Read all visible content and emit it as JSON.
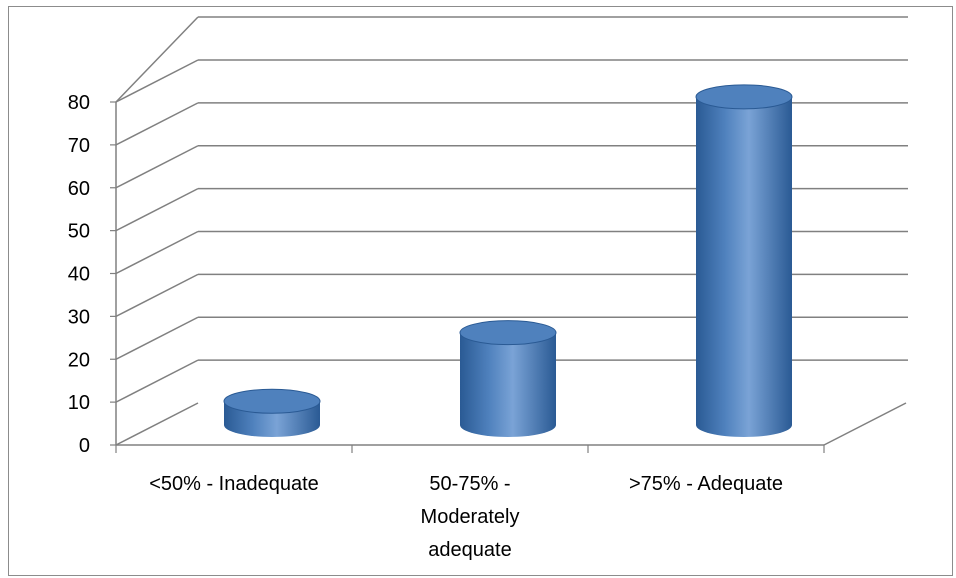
{
  "chart_data": {
    "type": "bar",
    "style": "3d-cylinder",
    "categories": [
      "<50% - Inadequate",
      "50-75% - Moderately adequate",
      ">75% - Adequate"
    ],
    "category_label_lines": [
      [
        "<50% - Inadequate"
      ],
      [
        "50-75% -",
        "Moderately",
        "adequate"
      ],
      [
        ">75% - Adequate"
      ]
    ],
    "values": [
      6,
      22,
      77
    ],
    "ylim": [
      0,
      80
    ],
    "yticks": [
      "0",
      "10",
      "20",
      "30",
      "40",
      "50",
      "60",
      "70",
      "80"
    ],
    "grid": true,
    "legend": "none",
    "title": "",
    "xlabel": "",
    "ylabel": "",
    "colors": {
      "bar_main": "#4f81bd",
      "bar_dark": "#2a5a94",
      "bar_light": "#7aa3d6",
      "grid": "#808080"
    }
  }
}
